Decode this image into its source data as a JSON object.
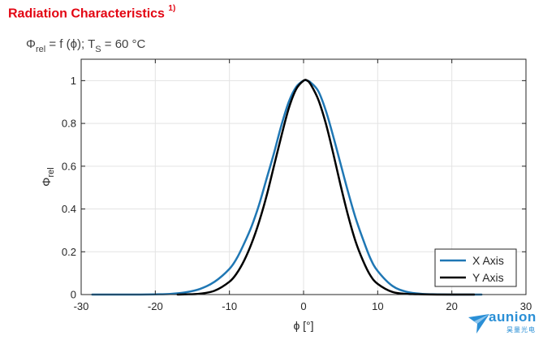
{
  "header": {
    "title": "Radiation Characteristics",
    "title_note": "1)",
    "formula_phi": "Φ",
    "formula_rel": "rel",
    "formula_mid": " = f (ϕ); T",
    "formula_s": "S",
    "formula_end": " = 60 °C"
  },
  "logo": {
    "word": "aunion",
    "chinese": "昊量光电"
  },
  "colors": {
    "x_axis_series": "#1f77b4",
    "y_axis_series": "#000000",
    "title": "#e30613"
  },
  "chart_data": {
    "type": "line",
    "xlabel": "ϕ [°]",
    "ylabel_main": "Φ",
    "ylabel_sub": "rel",
    "xlim": [
      -30,
      30
    ],
    "ylim": [
      0,
      1.1
    ],
    "xticks": [
      -30,
      -20,
      -10,
      0,
      10,
      20,
      30
    ],
    "yticks": [
      0,
      0.2,
      0.4,
      0.6,
      0.8,
      1
    ],
    "ytick_labels": [
      "0",
      "0.2",
      "0.4",
      "0.6",
      "0.8",
      "1"
    ],
    "grid": true,
    "legend_position": "bottom-right",
    "series": [
      {
        "name": "X Axis",
        "color": "#1f77b4",
        "x": [
          -28.5,
          -26,
          -24,
          -22,
          -20,
          -18,
          -16,
          -14,
          -12,
          -10,
          -9,
          -8,
          -7,
          -6,
          -5,
          -4,
          -3,
          -2,
          -1,
          0,
          0.5,
          1,
          2,
          3,
          4,
          5,
          6,
          7,
          8,
          9,
          10,
          12,
          14,
          16,
          18,
          20,
          22,
          24
        ],
        "y": [
          0.0,
          0.0,
          0.0,
          0.0,
          0.001,
          0.003,
          0.01,
          0.026,
          0.06,
          0.12,
          0.17,
          0.24,
          0.32,
          0.42,
          0.54,
          0.66,
          0.79,
          0.9,
          0.97,
          1.0,
          1.0,
          0.99,
          0.95,
          0.86,
          0.74,
          0.61,
          0.48,
          0.36,
          0.26,
          0.17,
          0.11,
          0.04,
          0.012,
          0.003,
          0.001,
          0.0,
          0.0,
          0.0
        ]
      },
      {
        "name": "Y Axis",
        "color": "#000000",
        "x": [
          -17,
          -16,
          -14,
          -12,
          -10,
          -9,
          -8,
          -7,
          -6,
          -5,
          -4,
          -3,
          -2,
          -1,
          0,
          0.5,
          1,
          2,
          3,
          4,
          5,
          6,
          7,
          8,
          9,
          10,
          12,
          14,
          16,
          18,
          20,
          22,
          23
        ],
        "y": [
          0.0,
          0.001,
          0.004,
          0.018,
          0.06,
          0.1,
          0.16,
          0.24,
          0.34,
          0.46,
          0.6,
          0.74,
          0.87,
          0.96,
          1.0,
          1.0,
          0.98,
          0.91,
          0.8,
          0.66,
          0.51,
          0.37,
          0.25,
          0.16,
          0.09,
          0.05,
          0.012,
          0.003,
          0.001,
          0.0,
          0.0,
          0.0,
          0.0
        ]
      }
    ]
  }
}
